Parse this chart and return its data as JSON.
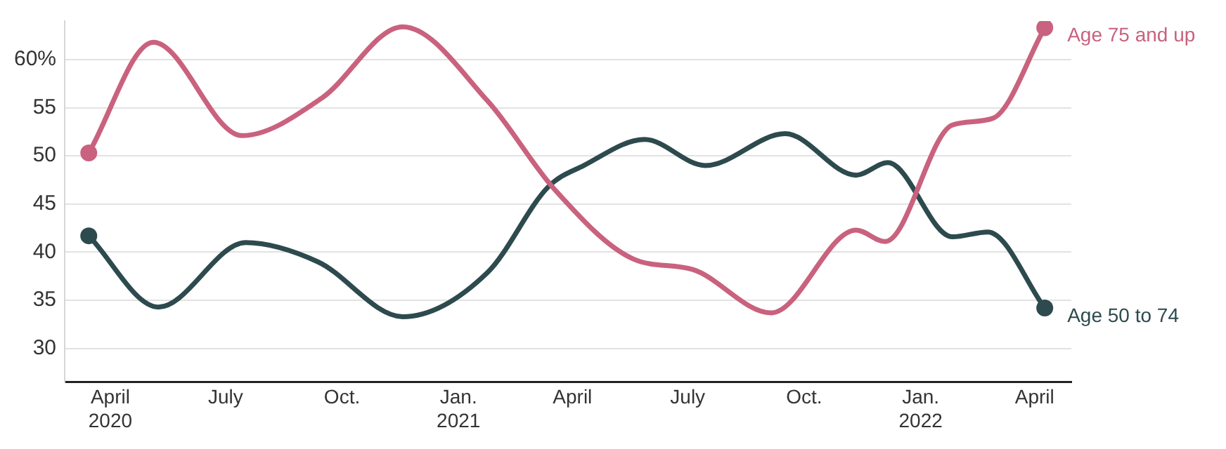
{
  "chart_data": {
    "type": "line",
    "legend": false,
    "grid": "y",
    "line_style": "solid",
    "xlim": [
      "2020-02-25",
      "2022-04-30"
    ],
    "xticks": [
      {
        "value": "2020-04",
        "label": "April\n2020"
      },
      {
        "value": "2020-07",
        "label": "July"
      },
      {
        "value": "2020-10",
        "label": "Oct."
      },
      {
        "value": "2021-01",
        "label": "Jan.\n2021"
      },
      {
        "value": "2021-04",
        "label": "April"
      },
      {
        "value": "2021-07",
        "label": "July"
      },
      {
        "value": "2021-10",
        "label": "Oct."
      },
      {
        "value": "2022-01",
        "label": "Jan.\n2022"
      },
      {
        "value": "2022-04",
        "label": "April"
      }
    ],
    "ylim": [
      26.5,
      64
    ],
    "yticks": [
      30,
      35,
      40,
      45,
      50,
      55,
      {
        "value": 60,
        "label": "60%"
      }
    ],
    "series": [
      {
        "name": "Age 75 and up",
        "color": "#c9627e",
        "x": [
          "2020-03-15",
          "2020-05-05",
          "2020-07-14",
          "2020-09-15",
          "2020-11-18",
          "2021-01-24",
          "2021-03-18",
          "2021-05-19",
          "2021-07-05",
          "2021-09-05",
          "2021-11-11",
          "2021-12-04",
          "2022-01-26",
          "2022-02-27",
          "2022-04-09"
        ],
        "values": [
          50.3,
          61.8,
          52.1,
          56.0,
          63.4,
          55.7,
          46.5,
          39.3,
          38.2,
          33.7,
          42.3,
          41.1,
          53.2,
          53.9,
          63.3
        ]
      },
      {
        "name": "Age 50 to 74",
        "color": "#2d4a4e",
        "x": [
          "2020-03-15",
          "2020-05-09",
          "2020-07-17",
          "2020-09-12",
          "2020-11-18",
          "2021-01-24",
          "2021-03-13",
          "2021-04-10",
          "2021-05-28",
          "2021-07-15",
          "2021-09-16",
          "2021-11-11",
          "2021-12-06",
          "2022-01-26",
          "2022-02-23",
          "2022-04-09"
        ],
        "values": [
          41.7,
          34.3,
          41.0,
          39.0,
          33.3,
          37.9,
          46.8,
          49.0,
          51.7,
          49.0,
          52.3,
          48.0,
          49.3,
          41.6,
          42.1,
          34.2
        ]
      }
    ]
  }
}
